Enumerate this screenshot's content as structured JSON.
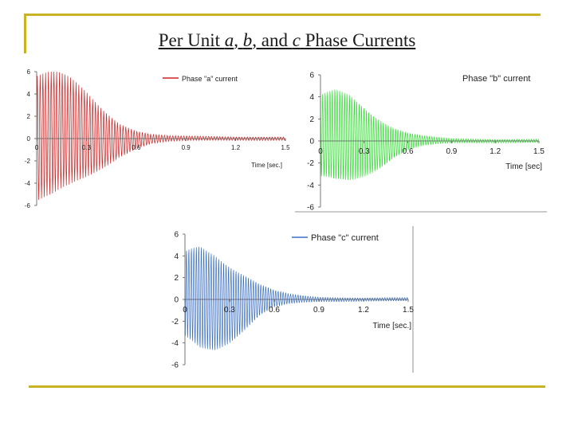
{
  "slide": {
    "title_parts": [
      "Per Unit ",
      "a",
      ", ",
      "b",
      ", and ",
      "c",
      " Phase Currents"
    ]
  },
  "chart_data": [
    {
      "type": "line",
      "id": "a",
      "color": "#cc2222",
      "legend": "Phase \"a\" current",
      "legend_position": "top-right",
      "xlabel": "Time [sec.]",
      "xlim": [
        0,
        1.5
      ],
      "ylim": [
        -6,
        6
      ],
      "x_ticks": [
        0,
        0.3,
        0.6,
        0.9,
        1.2,
        1.5
      ],
      "x_tick_labels": [
        "0",
        "0.3",
        "0.6",
        "0.9",
        "1.2",
        "1.5"
      ],
      "y_ticks": [
        6,
        4,
        2,
        0,
        -2,
        -4,
        -6
      ],
      "y_tick_labels": [
        "6",
        "4",
        "2",
        "0",
        "-2",
        "-4",
        "-6"
      ],
      "grid": false,
      "signal": {
        "frequency_hz": 60,
        "envelope": [
          [
            0,
            5.6
          ],
          [
            0.1,
            5.5
          ],
          [
            0.2,
            4.8
          ],
          [
            0.3,
            3.8
          ],
          [
            0.4,
            2.6
          ],
          [
            0.5,
            1.5
          ],
          [
            0.6,
            0.8
          ],
          [
            0.7,
            0.4
          ],
          [
            0.8,
            0.25
          ],
          [
            0.9,
            0.2
          ],
          [
            1.2,
            0.15
          ],
          [
            1.5,
            0.15
          ]
        ]
      }
    },
    {
      "type": "line",
      "id": "b",
      "color": "#33dd33",
      "legend": "Phase \"b\" current",
      "legend_position": "top-right",
      "xlabel": "Time [sec]",
      "xlim": [
        0,
        1.5
      ],
      "ylim": [
        -6,
        6
      ],
      "x_ticks": [
        0,
        0.3,
        0.6,
        0.9,
        1.2,
        1.5
      ],
      "x_tick_labels": [
        "0",
        "0.3",
        "0.6",
        "0.9",
        "1.2",
        "1.5"
      ],
      "y_ticks": [
        6,
        4,
        2,
        0,
        -2,
        -4,
        -6
      ],
      "y_tick_labels": [
        "6",
        "4",
        "2",
        "0",
        "-2",
        "-4",
        "-6"
      ],
      "grid": false,
      "signal": {
        "frequency_hz": 60,
        "envelope": [
          [
            0,
            3.8
          ],
          [
            0.1,
            4.2
          ],
          [
            0.2,
            4.0
          ],
          [
            0.3,
            3.2
          ],
          [
            0.4,
            2.3
          ],
          [
            0.5,
            1.4
          ],
          [
            0.6,
            0.8
          ],
          [
            0.7,
            0.45
          ],
          [
            0.8,
            0.3
          ],
          [
            0.9,
            0.2
          ],
          [
            1.2,
            0.15
          ],
          [
            1.5,
            0.15
          ]
        ]
      }
    },
    {
      "type": "line",
      "id": "c",
      "color": "#3a6fc4",
      "legend": "Phase \"c\" current",
      "legend_position": "top-right",
      "xlabel": "Time [sec.]",
      "xlim": [
        0,
        1.5
      ],
      "ylim": [
        -6,
        6
      ],
      "x_ticks": [
        0,
        0.3,
        0.6,
        0.9,
        1.2,
        1.5
      ],
      "x_tick_labels": [
        "0",
        "0.3",
        "0.6",
        "0.9",
        "1.2",
        "1.5"
      ],
      "y_ticks": [
        6,
        4,
        2,
        0,
        -2,
        -4,
        -6
      ],
      "y_tick_labels": [
        "6",
        "4",
        "2",
        "0",
        "-2",
        "-4",
        "-6"
      ],
      "grid": false,
      "signal": {
        "frequency_hz": 60,
        "envelope": [
          [
            0,
            4.0
          ],
          [
            0.1,
            4.8
          ],
          [
            0.2,
            4.5
          ],
          [
            0.3,
            3.6
          ],
          [
            0.4,
            2.6
          ],
          [
            0.5,
            1.5
          ],
          [
            0.6,
            0.8
          ],
          [
            0.7,
            0.45
          ],
          [
            0.8,
            0.3
          ],
          [
            0.9,
            0.2
          ],
          [
            1.2,
            0.15
          ],
          [
            1.5,
            0.15
          ]
        ]
      }
    }
  ]
}
